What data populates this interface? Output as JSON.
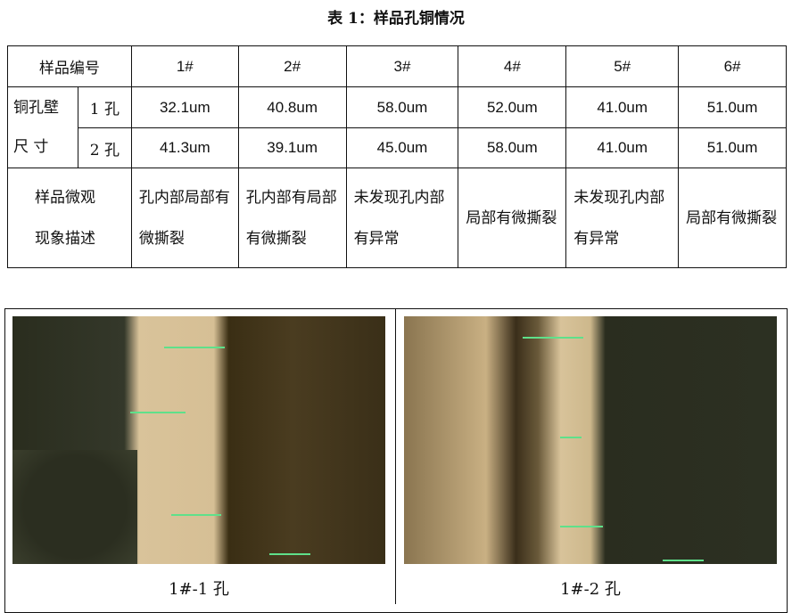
{
  "title": "表 1：样品孔铜情况",
  "table": {
    "header_label": "样品编号",
    "samples": [
      "1#",
      "2#",
      "3#",
      "4#",
      "5#",
      "6#"
    ],
    "wall_label_1": "铜孔壁",
    "wall_label_2": "尺 寸",
    "hole1_label": "1 孔",
    "hole2_label": "2 孔",
    "hole1": [
      "32.1um",
      "40.8um",
      "58.0um",
      "52.0um",
      "41.0um",
      "51.0um"
    ],
    "hole2": [
      "41.3um",
      "39.1um",
      "45.0um",
      "58.0um",
      "41.0um",
      "51.0um"
    ],
    "desc_label": "样品微观现象描述",
    "desc": [
      "孔内部局部有微撕裂",
      "孔内部有局部有微撕裂",
      "未发现孔内部有异常",
      "局部有微撕裂",
      "未发现孔内部有异常",
      "局部有微撕裂"
    ]
  },
  "images": [
    {
      "caption": "1#-1 孔"
    },
    {
      "caption": "1#-2 孔"
    }
  ]
}
